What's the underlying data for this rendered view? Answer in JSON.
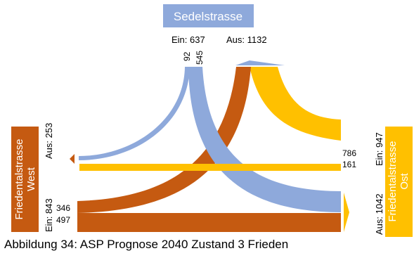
{
  "colors": {
    "sedel": "#8EA9DB",
    "west": "#C55A11",
    "ost": "#FFC000",
    "text": "#000000",
    "label_text": "#ffffff"
  },
  "nodes": {
    "north": {
      "title": "Sedelstrasse",
      "ein": "Ein: 637",
      "aus": "Aus: 1132"
    },
    "west": {
      "title_line1": "Friedentalstrasse",
      "title_line2": "West",
      "ein": "Ein: 843",
      "aus": "Aus: 253"
    },
    "east": {
      "title_line1": "Friedentalstrasse",
      "title_line2": "Ost",
      "ein": "Ein: 947",
      "aus": "Aus: 1042"
    }
  },
  "flows": [
    {
      "id": "north-to-west",
      "from": "Sedelstrasse",
      "to": "Friedentalstrasse West",
      "value": 92,
      "label": "92"
    },
    {
      "id": "north-to-east",
      "from": "Sedelstrasse",
      "to": "Friedentalstrasse Ost",
      "value": 545,
      "label": "545"
    },
    {
      "id": "east-to-north",
      "from": "Friedentalstrasse Ost",
      "to": "Sedelstrasse",
      "value": 786,
      "label": "786"
    },
    {
      "id": "east-to-west",
      "from": "Friedentalstrasse Ost",
      "to": "Friedentalstrasse West",
      "value": 161,
      "label": "161"
    },
    {
      "id": "west-to-north",
      "from": "Friedentalstrasse West",
      "to": "Sedelstrasse",
      "value": 346,
      "label": "346"
    },
    {
      "id": "west-to-east",
      "from": "Friedentalstrasse West",
      "to": "Friedentalstrasse Ost",
      "value": 497,
      "label": "497"
    }
  ],
  "caption": "Abbildung 34: ASP Prognose 2040 Zustand 3 Frieden"
}
